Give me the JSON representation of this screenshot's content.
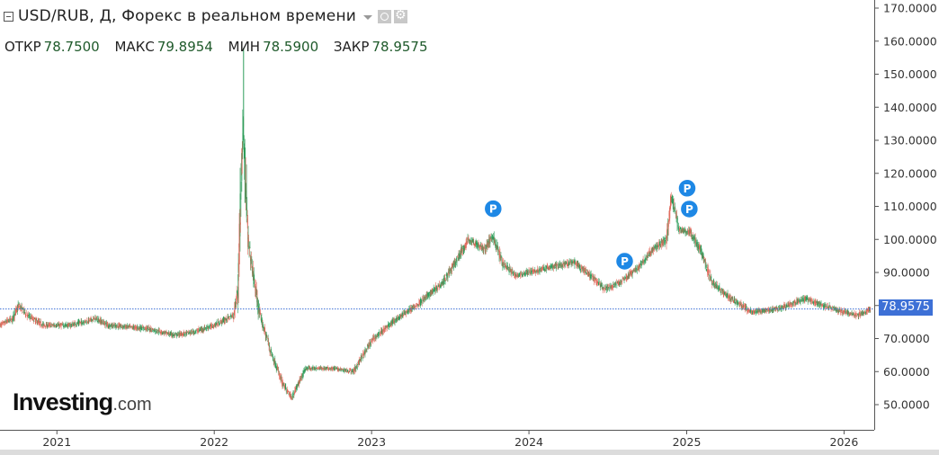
{
  "header": {
    "title": "USD/RUB, Д, Форекс в реальном времени",
    "ohlc": [
      {
        "label": "ОТКР",
        "value": "78.7500"
      },
      {
        "label": "МАКС",
        "value": "79.8954"
      },
      {
        "label": "МИН",
        "value": "78.5900"
      },
      {
        "label": "ЗАКР",
        "value": "78.9575"
      }
    ]
  },
  "logo": {
    "main": "Investing",
    "suffix": ".com"
  },
  "last_price_label": "78.9575",
  "colors": {
    "up": "#2e9d5a",
    "down": "#e06a5c",
    "marker": "#1e88e5",
    "price_line": "#3d70d6",
    "last_tag": "#3d70d6"
  },
  "chart_data": {
    "type": "candlestick",
    "symbol": "USD/RUB",
    "interval": "Д",
    "y_axis_ticks": [
      "50.0000",
      "60.0000",
      "70.0000",
      "80.0000",
      "90.0000",
      "100.0000",
      "110.0000",
      "120.0000",
      "130.0000",
      "140.0000",
      "150.0000",
      "160.0000",
      "170.0000"
    ],
    "ylim": [
      44,
      170
    ],
    "x_axis_ticks": [
      "2021",
      "2022",
      "2023",
      "2024",
      "2025",
      "2026"
    ],
    "xlim": [
      "2020-08-22",
      "2026-03-12"
    ],
    "last_price": 78.9575,
    "ohlc": {
      "open": 78.75,
      "high": 79.8954,
      "low": 78.59,
      "close": 78.9575
    },
    "price_path": [
      [
        "2020-08-22",
        74
      ],
      [
        "2020-09-20",
        76
      ],
      [
        "2020-10-05",
        80
      ],
      [
        "2020-10-25",
        77
      ],
      [
        "2020-12-01",
        74
      ],
      [
        "2021-01-01",
        74
      ],
      [
        "2021-02-01",
        74
      ],
      [
        "2021-04-01",
        76
      ],
      [
        "2021-05-01",
        74
      ],
      [
        "2021-08-01",
        73
      ],
      [
        "2021-10-01",
        71
      ],
      [
        "2021-11-15",
        72
      ],
      [
        "2022-01-01",
        74
      ],
      [
        "2022-02-15",
        77
      ],
      [
        "2022-02-25",
        85
      ],
      [
        "2022-03-05",
        120
      ],
      [
        "2022-03-10",
        135
      ],
      [
        "2022-03-20",
        100
      ],
      [
        "2022-04-15",
        78
      ],
      [
        "2022-05-15",
        65
      ],
      [
        "2022-06-10",
        56
      ],
      [
        "2022-06-30",
        52
      ],
      [
        "2022-08-01",
        61
      ],
      [
        "2022-10-01",
        61
      ],
      [
        "2022-11-20",
        60
      ],
      [
        "2023-01-05",
        70
      ],
      [
        "2023-03-01",
        76
      ],
      [
        "2023-04-15",
        80
      ],
      [
        "2023-06-15",
        87
      ],
      [
        "2023-07-15",
        93
      ],
      [
        "2023-08-14",
        100
      ],
      [
        "2023-09-20",
        97
      ],
      [
        "2023-10-09",
        101
      ],
      [
        "2023-11-01",
        93
      ],
      [
        "2023-12-01",
        89
      ],
      [
        "2024-02-01",
        91
      ],
      [
        "2024-04-15",
        93
      ],
      [
        "2024-05-15",
        90
      ],
      [
        "2024-06-25",
        85
      ],
      [
        "2024-08-01",
        87
      ],
      [
        "2024-09-15",
        92
      ],
      [
        "2024-10-15",
        97
      ],
      [
        "2024-11-15",
        100
      ],
      [
        "2024-11-27",
        113
      ],
      [
        "2024-12-15",
        103
      ],
      [
        "2025-01-10",
        102
      ],
      [
        "2025-02-01",
        97
      ],
      [
        "2025-03-01",
        87
      ],
      [
        "2025-04-15",
        82
      ],
      [
        "2025-06-01",
        78
      ],
      [
        "2025-08-01",
        79
      ],
      [
        "2025-10-01",
        82
      ],
      [
        "2025-11-15",
        80
      ],
      [
        "2026-01-01",
        78
      ],
      [
        "2026-02-01",
        77
      ],
      [
        "2026-03-03",
        79
      ]
    ],
    "markers": [
      {
        "label": "P",
        "date": "2023-10-10",
        "price": 109.3
      },
      {
        "label": "P",
        "date": "2024-08-10",
        "price": 93.4
      },
      {
        "label": "P",
        "date": "2025-01-02",
        "price": 115.5
      },
      {
        "label": "P",
        "date": "2025-01-07",
        "price": 109.2
      }
    ]
  }
}
